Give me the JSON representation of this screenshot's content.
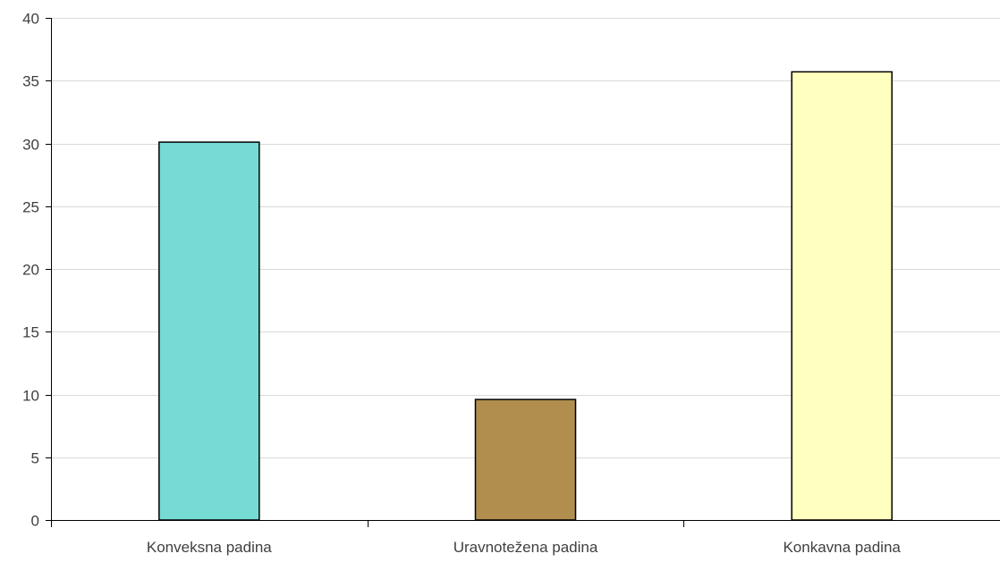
{
  "chart_data": {
    "type": "bar",
    "categories": [
      "Konveksna padina",
      "Uravnotežena padina",
      "Konkavna padina"
    ],
    "values": [
      30.1,
      9.6,
      35.7
    ],
    "bar_colors": [
      "#77dbd5",
      "#b18e4e",
      "#ffffc0"
    ],
    "bar_border_color": "#000000",
    "gridline_color": "#d9d9d9",
    "axis_color": "#000000",
    "text_color": "#404040",
    "ylim": [
      0,
      40
    ],
    "y_ticks": [
      "0",
      "5",
      "10",
      "15",
      "20",
      "25",
      "30",
      "35",
      "40"
    ],
    "grid": true,
    "legend": "none",
    "title": "",
    "xlabel": "",
    "ylabel": ""
  }
}
